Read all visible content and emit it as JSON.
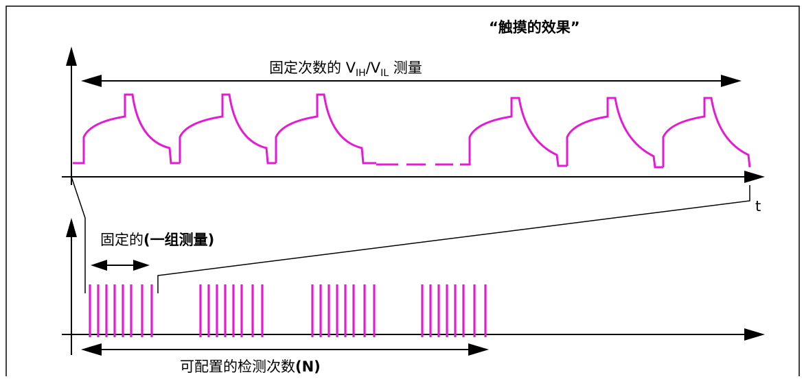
{
  "title": "“触摸的效果”",
  "fixed_count_label": {
    "prefix": "固定次数的 V",
    "sub1": "IH",
    "mid": "/V",
    "sub2": "IL",
    "suffix": " 测量"
  },
  "t_label": "t",
  "group_label": {
    "text": "固定的",
    "bold": "(一组测量)"
  },
  "detect_label": {
    "text": "可配置的检测次数",
    "bold": "(N)"
  },
  "colors": {
    "waveform": "#e619d4",
    "axis": "#000000",
    "frame": "#000000"
  }
}
